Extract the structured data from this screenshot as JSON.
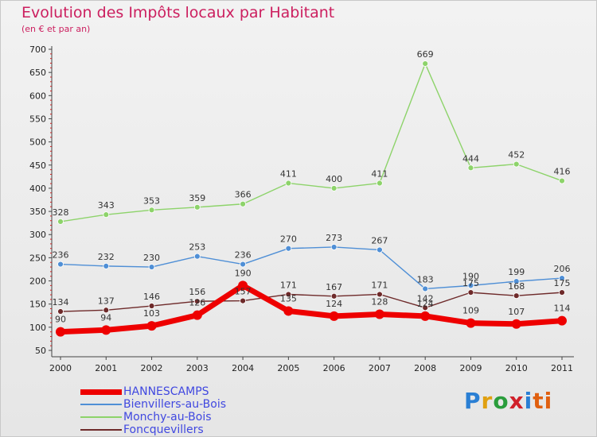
{
  "title": "Evolution des Impôts locaux par Habitant",
  "subtitle": "(en € et par an)",
  "logo": [
    "P",
    "r",
    "o",
    "x",
    "i",
    "ti"
  ],
  "chart_data": {
    "type": "line",
    "x": [
      "2000",
      "2001",
      "2002",
      "2003",
      "2004",
      "2005",
      "2006",
      "2007",
      "2008",
      "2009",
      "2010",
      "2011"
    ],
    "ylim": [
      50,
      700
    ],
    "yticks": [
      50,
      100,
      150,
      200,
      250,
      300,
      350,
      400,
      450,
      500,
      550,
      600,
      650,
      700
    ],
    "grid": false,
    "legend_position": "bottom-left",
    "series": [
      {
        "name": "HANNESCAMPS",
        "color": "#ee0000",
        "values": [
          90,
          94,
          103,
          126,
          190,
          135,
          124,
          128,
          124,
          109,
          107,
          114
        ]
      },
      {
        "name": "Bienvillers-au-Bois",
        "color": "#4f8fd6",
        "values": [
          236,
          232,
          230,
          253,
          236,
          270,
          273,
          267,
          183,
          190,
          199,
          206
        ]
      },
      {
        "name": "Monchy-au-Bois",
        "color": "#8dd36a",
        "values": [
          328,
          343,
          353,
          359,
          366,
          411,
          400,
          411,
          669,
          444,
          452,
          416
        ]
      },
      {
        "name": "Foncquevillers",
        "color": "#6e2a2a",
        "values": [
          134,
          137,
          146,
          156,
          157,
          171,
          167,
          171,
          142,
          175,
          168,
          175
        ]
      }
    ]
  }
}
